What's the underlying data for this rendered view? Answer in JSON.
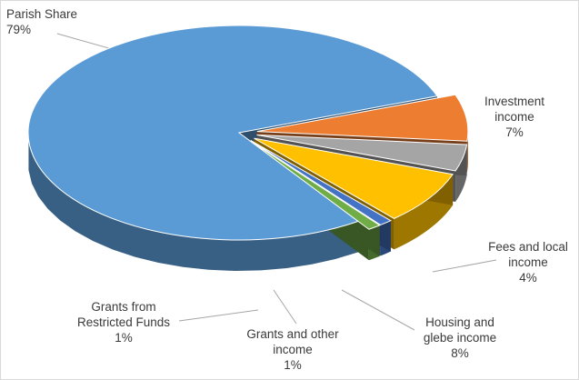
{
  "chart_data": {
    "type": "pie",
    "variant": "3d-exploded",
    "title": "",
    "legend": "none",
    "slices": [
      {
        "label": "Parish Share",
        "value": 79,
        "display": "79%",
        "color": "#5b9bd5"
      },
      {
        "label": "Investment income",
        "value": 7,
        "display": "7%",
        "color": "#ed7d31"
      },
      {
        "label": "Fees and local income",
        "value": 4,
        "display": "4%",
        "color": "#a5a5a5"
      },
      {
        "label": "Housing and glebe income",
        "value": 8,
        "display": "8%",
        "color": "#ffc000"
      },
      {
        "label": "Grants and other income",
        "value": 1,
        "display": "1%",
        "color": "#4472c4"
      },
      {
        "label": "Grants from Restricted Funds",
        "value": 1,
        "display": "1%",
        "color": "#70ad47"
      }
    ]
  },
  "labels": {
    "parish": {
      "line1": "Parish Share",
      "line2": "",
      "pct": "79%"
    },
    "investment": {
      "line1": "Investment",
      "line2": "income",
      "pct": "7%"
    },
    "fees": {
      "line1": "Fees and local",
      "line2": "income",
      "pct": "4%"
    },
    "housing": {
      "line1": "Housing and",
      "line2": "glebe income",
      "pct": "8%"
    },
    "grants_other": {
      "line1": "Grants and other",
      "line2": "income",
      "pct": "1%"
    },
    "grants_restricted": {
      "line1": "Grants from",
      "line2": "Restricted Funds",
      "pct": "1%"
    }
  }
}
